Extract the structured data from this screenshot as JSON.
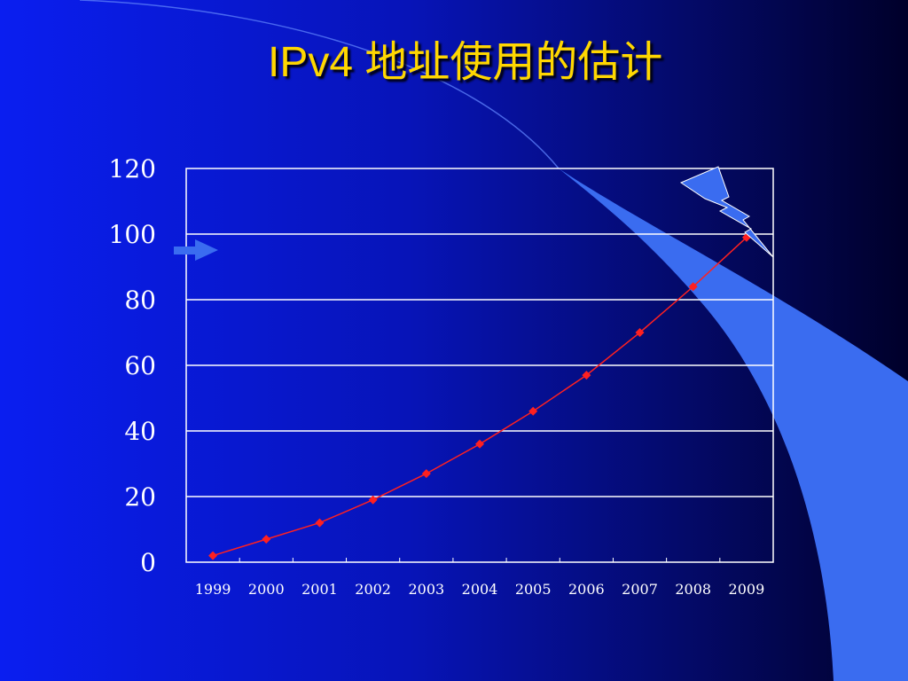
{
  "slide": {
    "title": "IPv4 地址使用的估计"
  },
  "colors": {
    "title": "#ffd700",
    "line": "#ff2020",
    "grid": "#ffffff",
    "lightning": "#3a6cf0",
    "accent_band": "#3a6cf0"
  },
  "chart_data": {
    "type": "line",
    "title": "",
    "xlabel": "",
    "ylabel": "",
    "categories": [
      "1999",
      "2000",
      "2001",
      "2002",
      "2003",
      "2004",
      "2005",
      "2006",
      "2007",
      "2008",
      "2009"
    ],
    "series": [
      {
        "values": [
          2,
          7,
          12,
          19,
          27,
          36,
          46,
          57,
          70,
          84,
          99
        ]
      }
    ],
    "ylim": [
      0,
      120
    ],
    "yticks": [
      0,
      20,
      40,
      60,
      80,
      100,
      120
    ],
    "grid": true,
    "legend": "none",
    "annotations": [
      "arrow-marker-at-100",
      "lightning-bolt"
    ]
  }
}
